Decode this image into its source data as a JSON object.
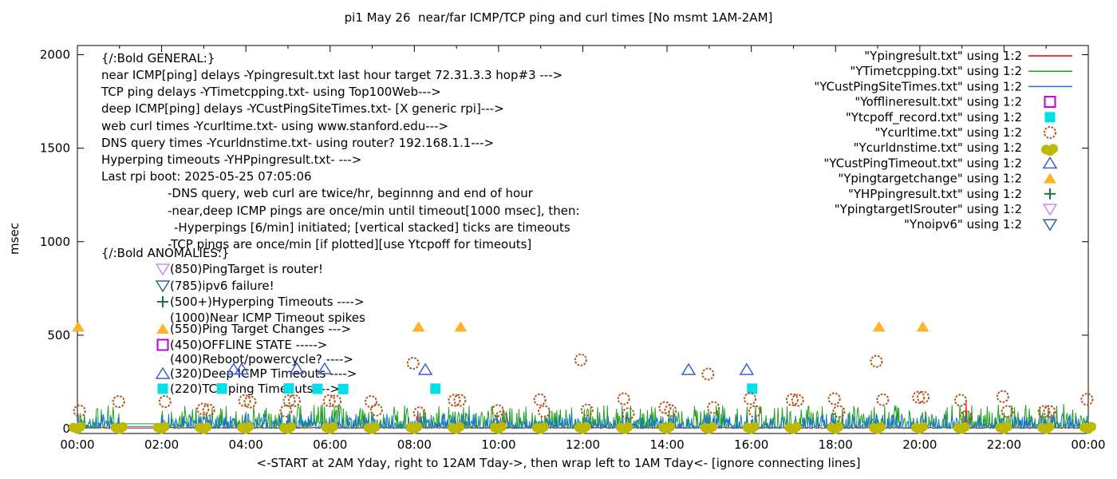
{
  "title": "pi1 May 26  near/far ICMP/TCP ping and curl times [No msmt 1AM-2AM]",
  "notes_general": {
    "header": "{/:Bold GENERAL:}",
    "lines": [
      {
        "text": "near ICMP[ping] delays -Ypingresult.txt last hour target 72.31.3.3 hop#3 --->",
        "indent": 0
      },
      {
        "text": "TCP ping delays -YTimetcpping.txt- using Top100Web--->",
        "indent": 0
      },
      {
        "text": "deep ICMP[ping] delays -YCustPingSiteTimes.txt- [X generic rpi]--->",
        "indent": 0
      },
      {
        "text": "web curl times -Ycurltime.txt- using www.stanford.edu--->",
        "indent": 0
      },
      {
        "text": "DNS query times -Ycurldnstime.txt- using router? 192.168.1.1--->",
        "indent": 0
      },
      {
        "text": "Hyperping timeouts -YHPpingresult.txt- --->",
        "indent": 0
      },
      {
        "text": "Last rpi boot: 2025-05-25 07:05:06",
        "indent": 0
      },
      {
        "text": "-DNS query, web curl are twice/hr, beginnng and end of hour",
        "indent": 1
      },
      {
        "text": "-near,deep ICMP pings are once/min until timeout[1000 msec], then:",
        "indent": 1
      },
      {
        "text": "-Hyperpings [6/min] initiated; [vertical stacked] ticks are timeouts",
        "indent": 2
      },
      {
        "text": "-TCP pings are once/min [if plotted][use Ytcpoff for timeouts]",
        "indent": 1
      }
    ]
  },
  "notes_anomalies": {
    "header": "{/:Bold ANOMALIES:}",
    "items": [
      {
        "marker": "triangle-down-open",
        "color": "#c98cf5",
        "text": "(850)PingTarget is router!"
      },
      {
        "marker": "triangle-down-open",
        "color": "#31688a",
        "text": "(785)ipv6 failure!"
      },
      {
        "marker": "plus",
        "color": "#177245",
        "text": "(500+)Hyperping Timeouts ---->"
      },
      {
        "marker": null,
        "color": null,
        "text": "(1000)Near ICMP Timeout spikes"
      },
      {
        "marker": "triangle-filled",
        "color": "#ffb428",
        "text": "(550)Ping Target Changes --->"
      },
      {
        "marker": "square-open",
        "color": "#bb00dd",
        "text": "(450)OFFLINE STATE ----->"
      },
      {
        "marker": null,
        "color": null,
        "text": "(400)Reboot/powercycle? ---->"
      },
      {
        "marker": "triangle-open",
        "color": "#3a5fcd",
        "text": "(320)Deep ICMP Timeouts ---->"
      },
      {
        "marker": "square-filled",
        "color": "#00e0e8",
        "text": "(220)TCP ping Timeouts --->"
      }
    ]
  },
  "chart_data": {
    "type": "line+scatter",
    "title": "pi1 May 26  near/far ICMP/TCP ping and curl times [No msmt 1AM-2AM]",
    "xlabel": "<-START at 2AM Yday, right to 12AM Tday->, then wrap left to 1AM Tday<- [ignore connecting lines]",
    "ylabel": "msec",
    "x_range_hours": [
      0,
      24
    ],
    "y_range_msec": [
      0,
      2050
    ],
    "y_ticks": [
      0,
      500,
      1000,
      1500,
      2000
    ],
    "x_tick_labels": [
      "00:00",
      "02:00",
      "04:00",
      "06:00",
      "08:00",
      "10:00",
      "12:00",
      "14:00",
      "16:00",
      "18:00",
      "20:00",
      "22:00",
      "00:00"
    ],
    "grid": false,
    "legend_position": "top-right",
    "no_measurement_gap_hours": [
      1,
      2
    ],
    "series": [
      {
        "name": "\"Ypingresult.txt\" using 1:2",
        "type": "noise-line",
        "color": "#dd0000",
        "base_range_msec": [
          1.5,
          6
        ],
        "gap_value_msec": 4,
        "seed": 99,
        "spikes_t_msec": [
          [
            8.08,
            95
          ],
          [
            21.1,
            140
          ]
        ]
      },
      {
        "name": "\"YTimetcpping.txt\" using 1:2",
        "type": "noise-line",
        "color": "#22a022",
        "base_range_msec": [
          2,
          125
        ],
        "gap_value_msec": 26,
        "seed": 42,
        "spikes_t_msec": []
      },
      {
        "name": "\"YCustPingSiteTimes.txt\" using 1:2",
        "type": "noise-line",
        "color": "#1874d2",
        "base_range_msec": [
          2,
          80
        ],
        "gap_value_msec": 12,
        "seed": 7,
        "spikes_t_msec": []
      },
      {
        "name": "\"Yofflineresult.txt\" using 1:2",
        "type": "scatter",
        "marker": "square-open",
        "color": "#bb00dd",
        "points_t_msec": []
      },
      {
        "name": "\"Ytcpoff_record.txt\" using 1:2",
        "type": "scatter",
        "marker": "square-filled",
        "color": "#00e0e8",
        "points_t_msec": [
          [
            3.43,
            215
          ],
          [
            5.02,
            215
          ],
          [
            5.7,
            213
          ],
          [
            6.31,
            212
          ],
          [
            8.5,
            214
          ],
          [
            16.02,
            214
          ]
        ]
      },
      {
        "name": "\"Ycurltime.txt\" using 1:2",
        "type": "scatter",
        "marker": "circle-open",
        "color": "#b45418",
        "points_t_msec": [
          [
            0.05,
            95
          ],
          [
            0.98,
            145
          ],
          [
            2.08,
            145
          ],
          [
            2.98,
            105
          ],
          [
            3.12,
            100
          ],
          [
            3.97,
            150
          ],
          [
            4.1,
            143
          ],
          [
            4.95,
            94
          ],
          [
            5.03,
            150
          ],
          [
            5.15,
            150
          ],
          [
            5.98,
            150
          ],
          [
            6.12,
            148
          ],
          [
            6.97,
            145
          ],
          [
            7.1,
            100
          ],
          [
            7.97,
            350
          ],
          [
            8.12,
            85
          ],
          [
            8.95,
            152
          ],
          [
            9.08,
            152
          ],
          [
            9.98,
            97
          ],
          [
            10.06,
            62
          ],
          [
            10.98,
            155
          ],
          [
            11.08,
            92
          ],
          [
            11.95,
            368
          ],
          [
            12.1,
            100
          ],
          [
            12.97,
            160
          ],
          [
            13.08,
            80
          ],
          [
            13.95,
            113
          ],
          [
            14.08,
            97
          ],
          [
            14.97,
            292
          ],
          [
            15.1,
            113
          ],
          [
            15.97,
            160
          ],
          [
            16.08,
            92
          ],
          [
            16.97,
            155
          ],
          [
            17.1,
            152
          ],
          [
            17.97,
            160
          ],
          [
            18.08,
            92
          ],
          [
            18.97,
            360
          ],
          [
            19.12,
            155
          ],
          [
            19.97,
            168
          ],
          [
            20.08,
            168
          ],
          [
            20.97,
            152
          ],
          [
            21.1,
            64
          ],
          [
            21.97,
            172
          ],
          [
            22.08,
            92
          ],
          [
            22.95,
            92
          ],
          [
            23.08,
            92
          ],
          [
            23.97,
            157
          ]
        ]
      },
      {
        "name": "\"Ycurldnstime.txt\" using 1:2",
        "type": "scatter",
        "marker": "circle-cluster",
        "color": "#bdb800",
        "points_t_msec": [
          [
            0,
            15
          ],
          [
            1,
            14
          ],
          [
            2,
            15
          ],
          [
            3,
            14
          ],
          [
            4,
            15
          ],
          [
            5,
            14
          ],
          [
            6,
            15
          ],
          [
            7,
            14
          ],
          [
            8,
            15
          ],
          [
            9,
            14
          ],
          [
            10,
            15
          ],
          [
            11,
            14
          ],
          [
            12,
            15
          ],
          [
            13,
            14
          ],
          [
            14,
            15
          ],
          [
            15,
            14
          ],
          [
            16,
            15
          ],
          [
            17,
            14
          ],
          [
            18,
            15
          ],
          [
            19,
            14
          ],
          [
            20,
            15
          ],
          [
            21,
            14
          ],
          [
            22,
            15
          ],
          [
            23,
            14
          ],
          [
            24,
            15
          ]
        ]
      },
      {
        "name": "\"YCustPingTimeout.txt\" using 1:2",
        "type": "scatter",
        "marker": "triangle-open",
        "color": "#3a5fcd",
        "points_t_msec": [
          [
            3.71,
            318
          ],
          [
            3.9,
            318
          ],
          [
            5.21,
            322
          ],
          [
            5.87,
            320
          ],
          [
            8.26,
            316
          ],
          [
            14.51,
            316
          ],
          [
            15.89,
            316
          ]
        ]
      },
      {
        "name": "\"Ypingtargetchange\" using 1:2",
        "type": "scatter",
        "marker": "triangle-filled",
        "color": "#ffb428",
        "points_t_msec": [
          [
            0.02,
            545
          ],
          [
            8.1,
            545
          ],
          [
            9.1,
            545
          ],
          [
            19.03,
            545
          ],
          [
            20.07,
            545
          ]
        ]
      },
      {
        "name": "\"YHPpingresult.txt\" using 1:2",
        "type": "scatter",
        "marker": "plus",
        "color": "#177245",
        "points_t_msec": []
      },
      {
        "name": "\"YpingtargetISrouter\" using 1:2",
        "type": "scatter",
        "marker": "triangle-down-open",
        "color": "#c98cf5",
        "points_t_msec": []
      },
      {
        "name": "\"Ynoipv6\" using 1:2",
        "type": "scatter",
        "marker": "triangle-down-open",
        "color": "#31688a",
        "points_t_msec": []
      }
    ]
  }
}
